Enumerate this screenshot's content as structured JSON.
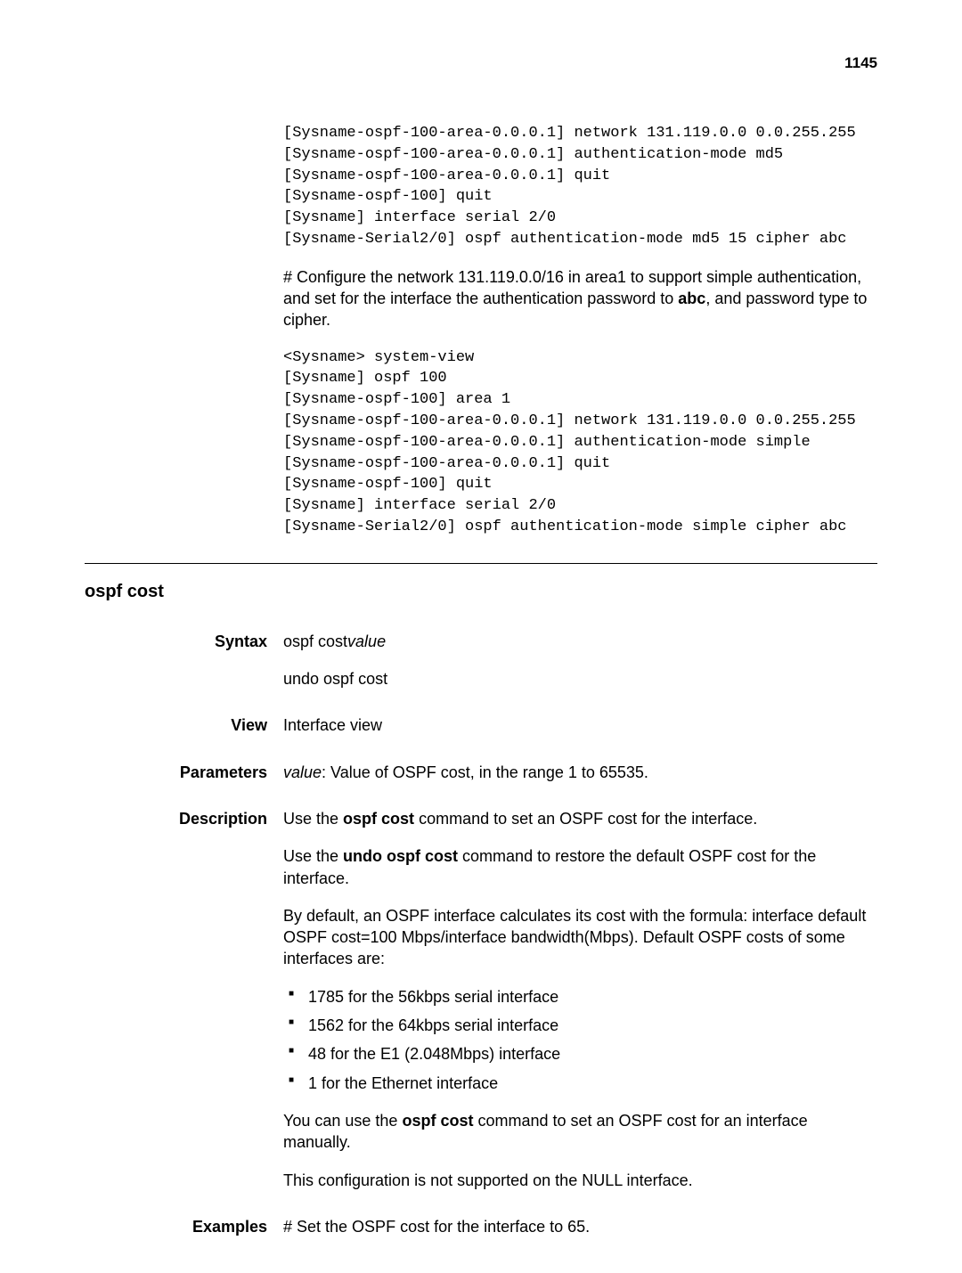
{
  "page_number": "1145",
  "top_code": [
    "[Sysname-ospf-100-area-0.0.0.1] network 131.119.0.0 0.0.255.255",
    "[Sysname-ospf-100-area-0.0.0.1] authentication-mode md5",
    "[Sysname-ospf-100-area-0.0.0.1] quit",
    "[Sysname-ospf-100] quit",
    "[Sysname] interface serial 2/0",
    "[Sysname-Serial2/0] ospf authentication-mode md5 15 cipher abc"
  ],
  "top_note_pre": "# Configure the network 131.119.0.0/16 in area1 to support simple authentication, and set for the interface the authentication password to ",
  "top_note_bold": "abc",
  "top_note_post": ", and password type to cipher.",
  "mid_code": [
    "<Sysname> system-view",
    "[Sysname] ospf 100",
    "[Sysname-ospf-100] area 1",
    "[Sysname-ospf-100-area-0.0.0.1] network 131.119.0.0 0.0.255.255",
    "[Sysname-ospf-100-area-0.0.0.1] authentication-mode simple",
    "[Sysname-ospf-100-area-0.0.0.1] quit",
    "[Sysname-ospf-100] quit",
    "[Sysname] interface serial 2/0",
    "[Sysname-Serial2/0] ospf authentication-mode simple cipher abc"
  ],
  "section_title": "ospf cost",
  "labels": {
    "syntax": "Syntax",
    "view": "View",
    "parameters": "Parameters",
    "description": "Description",
    "examples": "Examples"
  },
  "syntax": {
    "line1": "ospf cost",
    "line1_italic": "value",
    "line2": "undo ospf cost"
  },
  "view": "Interface view",
  "parameters": {
    "name": "value",
    "text": ": Value of OSPF cost, in the range 1 to 65535."
  },
  "description": {
    "p1_pre": "Use the ",
    "p1_bold": "ospf cost",
    "p1_post": " command to set an OSPF cost for the interface.",
    "p2_pre": "Use the ",
    "p2_bold": "undo ospf cost",
    "p2_post": " command to restore the default OSPF cost for the interface.",
    "p3": "By default, an OSPF interface calculates its cost with the formula: interface default OSPF cost=100 Mbps/interface bandwidth(Mbps). Default OSPF costs of some interfaces are:",
    "bullets": [
      "1785 for the 56kbps serial interface",
      "1562 for the 64kbps serial interface",
      "48 for the E1 (2.048Mbps) interface",
      "1 for the Ethernet interface"
    ],
    "p4_pre": "You can use the ",
    "p4_bold": "ospf cost",
    "p4_post": " command to set an OSPF cost for an interface manually.",
    "p5": "This configuration is not supported on the NULL interface."
  },
  "examples": "# Set the OSPF cost for the interface to 65."
}
